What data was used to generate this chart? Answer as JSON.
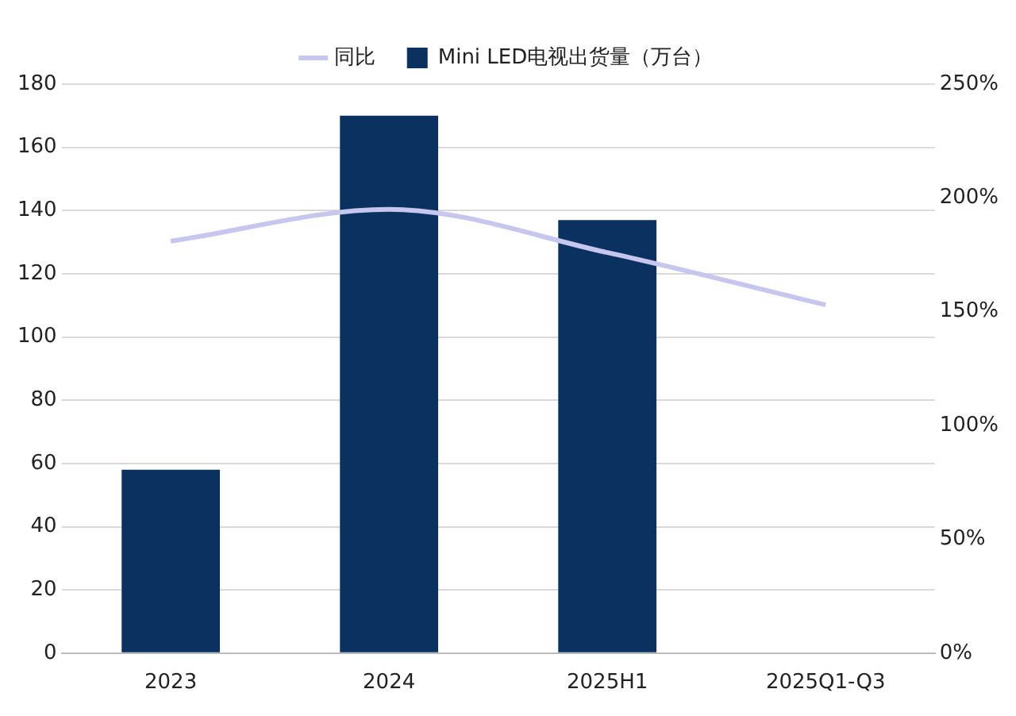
{
  "chart_data": {
    "type": "bar",
    "categories": [
      "2023",
      "2024",
      "2025H1",
      "2025Q1-Q3"
    ],
    "series": [
      {
        "name": "Mini LED电视出货量（万台）",
        "color": "#0b3161",
        "values": [
          58,
          170,
          137,
          null
        ]
      },
      {
        "name": "同比",
        "type": "line",
        "axis": "y2",
        "color": "#c6c6ee",
        "values": [
          181,
          195,
          176,
          153
        ]
      }
    ],
    "ylim": [
      0,
      180
    ],
    "yticks": [
      0,
      20,
      40,
      60,
      80,
      100,
      120,
      140,
      160,
      180
    ],
    "y2lim": [
      0,
      250
    ],
    "y2ticks": [
      {
        "value": 0,
        "label": "0%"
      },
      {
        "value": 50,
        "label": "50%"
      },
      {
        "value": 100,
        "label": "100%"
      },
      {
        "value": 150,
        "label": "150%"
      },
      {
        "value": 200,
        "label": "200%"
      },
      {
        "value": 250,
        "label": "250%"
      }
    ],
    "grid": "y",
    "legend": "top",
    "marker": "none"
  }
}
